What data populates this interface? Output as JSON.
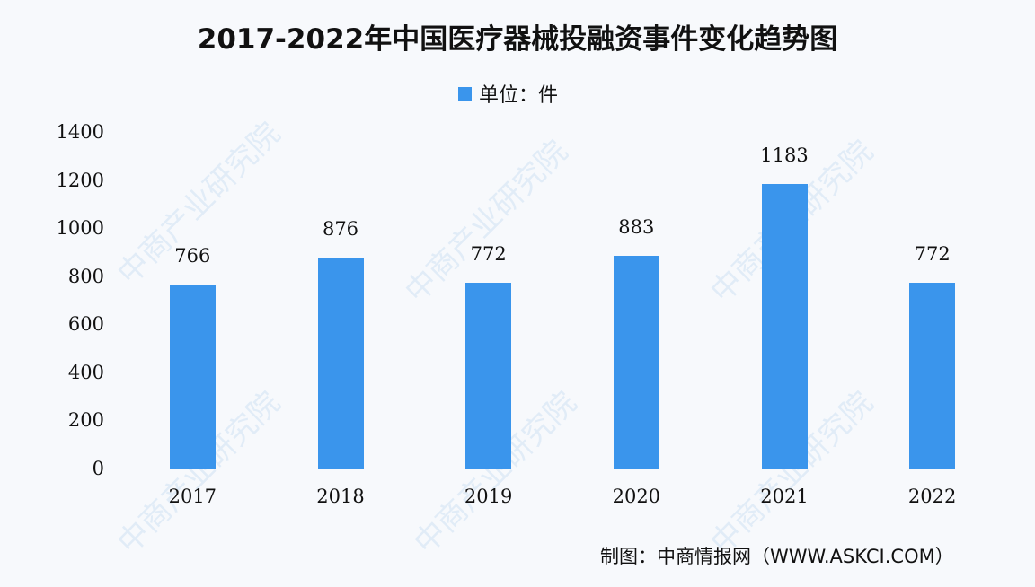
{
  "title": "2017-2022年中国医疗器械投融资事件变化趋势图",
  "legend": {
    "label": "单位：件",
    "color": "#3a95ec"
  },
  "source": "制图：中商情报网（WWW.ASKCI.COM）",
  "watermark": "中商产业研究院",
  "y_ticks": [
    "0",
    "200",
    "400",
    "600",
    "800",
    "1000",
    "1200",
    "1400"
  ],
  "chart_data": {
    "type": "bar",
    "title": "2017-2022年中国医疗器械投融资事件变化趋势图",
    "xlabel": "",
    "ylabel": "",
    "unit": "件",
    "categories": [
      "2017",
      "2018",
      "2019",
      "2020",
      "2021",
      "2022"
    ],
    "values": [
      766,
      876,
      772,
      883,
      1183,
      772
    ],
    "series": [
      {
        "name": "单位：件",
        "values": [
          766,
          876,
          772,
          883,
          1183,
          772
        ]
      }
    ],
    "ylim": [
      0,
      1400
    ],
    "y_ticks": [
      0,
      200,
      400,
      600,
      800,
      1000,
      1200,
      1400
    ],
    "grid": false,
    "legend_position": "top",
    "bar_color": "#3a95ec",
    "source": "制图：中商情报网（WWW.ASKCI.COM）"
  }
}
